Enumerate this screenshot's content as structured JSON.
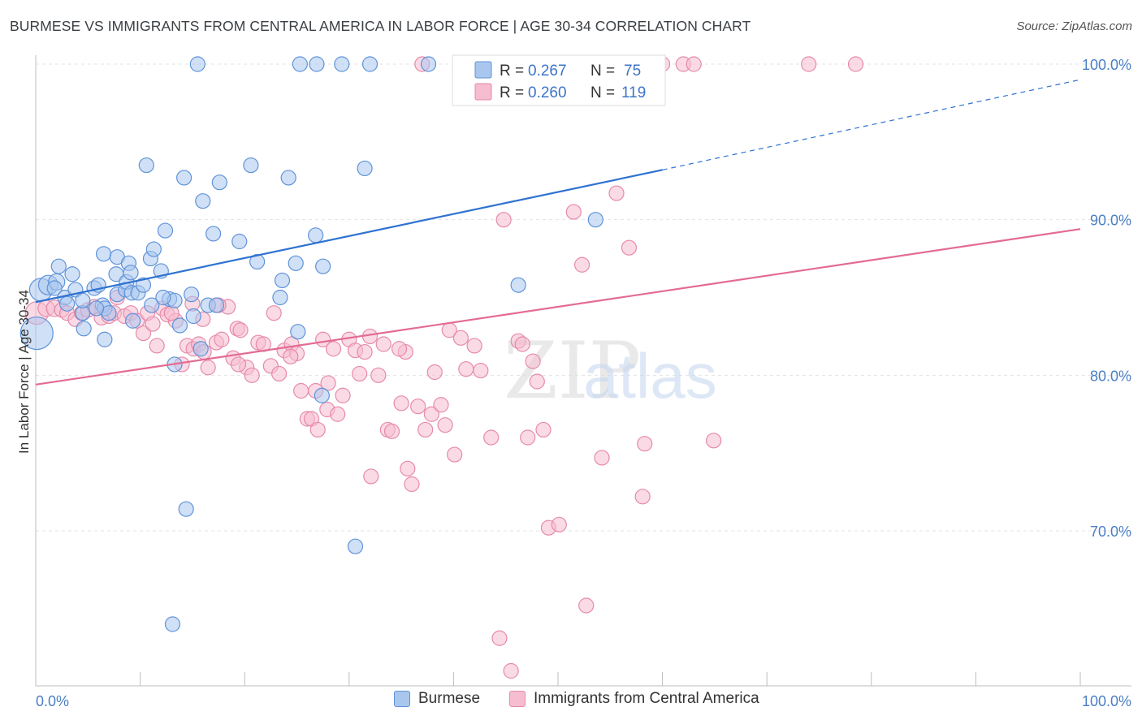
{
  "title": "BURMESE VS IMMIGRANTS FROM CENTRAL AMERICA IN LABOR FORCE | AGE 30-34 CORRELATION CHART",
  "source": "Source: ZipAtlas.com",
  "watermark": {
    "zip": "ZIP",
    "atlas": "atlas"
  },
  "colors": {
    "burmese_fill": "#a9c7ee",
    "burmese_stroke": "#5f93d8",
    "burmese_line": "#2f72d1",
    "central_fill": "#f6bccf",
    "central_stroke": "#e68aa9",
    "central_line": "#e46b93",
    "axis_text": "#4a7fc4",
    "grid": "#e3e3e3"
  },
  "legend": {
    "rows": [
      {
        "r_label": "R =",
        "r_value": "0.267",
        "n_label": "N =",
        "n_value": "75"
      },
      {
        "r_label": "R =",
        "r_value": "0.260",
        "n_label": "N =",
        "n_value": "119"
      }
    ]
  },
  "bottom_legend": [
    "Burmese",
    "Immigrants from Central America"
  ],
  "chart_data": {
    "type": "scatter",
    "xlabel": "",
    "ylabel": "In Labor Force | Age 30-34",
    "xlim": [
      0,
      100
    ],
    "ylim": [
      60.5,
      101.5
    ],
    "x_tick_labels": [
      "0.0%",
      "100.0%"
    ],
    "y_ticks": [
      70,
      80,
      90,
      100
    ],
    "y_tick_labels": [
      "70.0%",
      "80.0%",
      "90.0%",
      "100.0%"
    ],
    "grid": true,
    "series": [
      {
        "name": "Burmese",
        "trend": {
          "x": [
            0,
            60
          ],
          "y": [
            84.7,
            93.2
          ],
          "dashed_extension_to": [
            100,
            99.0
          ]
        },
        "points": [
          [
            0.1,
            82.7,
            20
          ],
          [
            0.5,
            85.5,
            14
          ],
          [
            1.2,
            85.8,
            12
          ],
          [
            2.0,
            86.0,
            10
          ],
          [
            2.2,
            87.0,
            9
          ],
          [
            1.8,
            85.6,
            9
          ],
          [
            2.8,
            85.0,
            9
          ],
          [
            3.5,
            86.5,
            9
          ],
          [
            3.8,
            85.5,
            9
          ],
          [
            4.5,
            84.0,
            9
          ],
          [
            4.6,
            83.0,
            9
          ],
          [
            5.6,
            85.6,
            9
          ],
          [
            6.0,
            85.8,
            9
          ],
          [
            6.4,
            84.5,
            9
          ],
          [
            6.6,
            84.3,
            9
          ],
          [
            7.0,
            84.0,
            9
          ],
          [
            7.8,
            85.2,
            9
          ],
          [
            6.6,
            82.3,
            9
          ],
          [
            6.5,
            87.8,
            9
          ],
          [
            7.7,
            86.5,
            9
          ],
          [
            7.8,
            87.6,
            9
          ],
          [
            8.6,
            85.5,
            9
          ],
          [
            8.7,
            86.0,
            9
          ],
          [
            8.9,
            87.2,
            9
          ],
          [
            9.1,
            86.6,
            9
          ],
          [
            9.2,
            85.3,
            9
          ],
          [
            9.3,
            83.5,
            9
          ],
          [
            9.8,
            85.3,
            9
          ],
          [
            10.3,
            85.8,
            9
          ],
          [
            10.6,
            93.5,
            9
          ],
          [
            11.1,
            84.5,
            9
          ],
          [
            11.0,
            87.5,
            9
          ],
          [
            11.3,
            88.1,
            9
          ],
          [
            12.0,
            86.7,
            9
          ],
          [
            12.4,
            89.3,
            9
          ],
          [
            12.8,
            84.9,
            9
          ],
          [
            13.3,
            84.8,
            9
          ],
          [
            13.3,
            80.7,
            9
          ],
          [
            13.8,
            83.2,
            9
          ],
          [
            14.2,
            92.7,
            9
          ],
          [
            14.4,
            71.4,
            9
          ],
          [
            14.9,
            85.2,
            9
          ],
          [
            15.1,
            83.8,
            9
          ],
          [
            15.8,
            81.7,
            9
          ],
          [
            16.0,
            91.2,
            9
          ],
          [
            16.5,
            84.5,
            9
          ],
          [
            17.0,
            89.1,
            9
          ],
          [
            17.3,
            84.5,
            9
          ],
          [
            17.6,
            92.4,
            9
          ],
          [
            19.5,
            88.6,
            9
          ],
          [
            20.6,
            93.5,
            9
          ],
          [
            21.2,
            87.3,
            9
          ],
          [
            23.4,
            85.0,
            9
          ],
          [
            23.6,
            86.1,
            9
          ],
          [
            24.2,
            92.7,
            9
          ],
          [
            24.9,
            87.2,
            9
          ],
          [
            25.1,
            82.8,
            9
          ],
          [
            26.8,
            89.0,
            9
          ],
          [
            27.5,
            87.0,
            9
          ],
          [
            27.4,
            78.7,
            9
          ],
          [
            29.3,
            100.0,
            9
          ],
          [
            30.6,
            69.0,
            9
          ],
          [
            31.5,
            93.3,
            9
          ],
          [
            15.5,
            100.0,
            9
          ],
          [
            25.3,
            100.0,
            9
          ],
          [
            26.9,
            100.0,
            9
          ],
          [
            32.0,
            100.0,
            9
          ],
          [
            37.6,
            100.0,
            9
          ],
          [
            46.2,
            85.8,
            9
          ],
          [
            53.6,
            90.0,
            9
          ],
          [
            13.1,
            64.0,
            9
          ],
          [
            4.5,
            84.8,
            9
          ],
          [
            5.8,
            84.3,
            9
          ],
          [
            12.2,
            85.0,
            9
          ],
          [
            3.0,
            84.6,
            9
          ]
        ]
      },
      {
        "name": "Immigrants from Central America",
        "trend": {
          "x": [
            0,
            100
          ],
          "y": [
            79.4,
            89.4
          ]
        },
        "points": [
          [
            0.1,
            84.0,
            14
          ],
          [
            1.0,
            84.3,
            10
          ],
          [
            1.8,
            84.3,
            10
          ],
          [
            2.5,
            84.2,
            9
          ],
          [
            3.0,
            84.0,
            9
          ],
          [
            3.8,
            83.6,
            9
          ],
          [
            4.4,
            84.0,
            9
          ],
          [
            5.0,
            84.2,
            9
          ],
          [
            5.6,
            84.4,
            9
          ],
          [
            6.3,
            83.7,
            9
          ],
          [
            7.0,
            83.8,
            9
          ],
          [
            7.5,
            84.0,
            9
          ],
          [
            7.8,
            85.0,
            9
          ],
          [
            8.5,
            83.8,
            9
          ],
          [
            9.1,
            84.0,
            9
          ],
          [
            9.7,
            83.5,
            9
          ],
          [
            10.3,
            82.7,
            9
          ],
          [
            10.7,
            84.0,
            9
          ],
          [
            11.2,
            83.3,
            9
          ],
          [
            11.6,
            81.9,
            9
          ],
          [
            12.1,
            84.3,
            9
          ],
          [
            12.6,
            83.9,
            9
          ],
          [
            13.4,
            83.5,
            9
          ],
          [
            14.0,
            80.7,
            9
          ],
          [
            14.5,
            81.9,
            9
          ],
          [
            15.0,
            84.6,
            9
          ],
          [
            15.1,
            81.7,
            9
          ],
          [
            15.6,
            82.0,
            9
          ],
          [
            16.1,
            81.5,
            9
          ],
          [
            16.5,
            80.5,
            9
          ],
          [
            17.3,
            82.1,
            9
          ],
          [
            17.8,
            82.3,
            9
          ],
          [
            18.4,
            84.4,
            9
          ],
          [
            18.9,
            81.1,
            9
          ],
          [
            19.3,
            83.0,
            9
          ],
          [
            19.6,
            82.9,
            9
          ],
          [
            20.2,
            80.5,
            9
          ],
          [
            20.7,
            80.0,
            9
          ],
          [
            21.3,
            82.1,
            9
          ],
          [
            21.8,
            82.0,
            9
          ],
          [
            22.5,
            80.6,
            9
          ],
          [
            22.8,
            84.0,
            9
          ],
          [
            23.3,
            80.1,
            9
          ],
          [
            23.8,
            81.6,
            9
          ],
          [
            24.5,
            82.0,
            9
          ],
          [
            25.0,
            81.4,
            9
          ],
          [
            25.4,
            79.0,
            9
          ],
          [
            26.0,
            77.2,
            9
          ],
          [
            26.4,
            77.2,
            9
          ],
          [
            26.8,
            79.0,
            9
          ],
          [
            27.5,
            82.3,
            9
          ],
          [
            27.9,
            77.8,
            9
          ],
          [
            28.5,
            81.7,
            9
          ],
          [
            28.9,
            77.5,
            9
          ],
          [
            29.4,
            78.7,
            9
          ],
          [
            30.0,
            82.3,
            9
          ],
          [
            30.6,
            81.6,
            9
          ],
          [
            31.0,
            80.1,
            9
          ],
          [
            31.5,
            81.5,
            9
          ],
          [
            32.1,
            73.5,
            9
          ],
          [
            32.8,
            80.0,
            9
          ],
          [
            33.3,
            82.0,
            9
          ],
          [
            33.7,
            76.5,
            9
          ],
          [
            34.1,
            76.4,
            9
          ],
          [
            35.0,
            78.2,
            9
          ],
          [
            35.4,
            81.5,
            9
          ],
          [
            35.6,
            74.0,
            9
          ],
          [
            36.0,
            73.0,
            9
          ],
          [
            36.6,
            78.0,
            9
          ],
          [
            37.3,
            76.5,
            9
          ],
          [
            37.9,
            77.5,
            9
          ],
          [
            38.2,
            80.2,
            9
          ],
          [
            38.8,
            78.1,
            9
          ],
          [
            39.2,
            76.8,
            9
          ],
          [
            39.6,
            82.9,
            9
          ],
          [
            40.1,
            74.9,
            9
          ],
          [
            40.7,
            82.4,
            9
          ],
          [
            41.2,
            80.4,
            9
          ],
          [
            42.0,
            81.9,
            9
          ],
          [
            42.6,
            80.3,
            9
          ],
          [
            43.6,
            76.0,
            9
          ],
          [
            44.8,
            90.0,
            9
          ],
          [
            45.5,
            61.0,
            9
          ],
          [
            44.4,
            63.1,
            9
          ],
          [
            46.2,
            82.2,
            9
          ],
          [
            47.1,
            76.0,
            9
          ],
          [
            47.6,
            80.9,
            9
          ],
          [
            48.0,
            79.6,
            9
          ],
          [
            48.6,
            76.5,
            9
          ],
          [
            49.1,
            70.2,
            9
          ],
          [
            50.1,
            70.4,
            9
          ],
          [
            51.5,
            90.5,
            9
          ],
          [
            52.3,
            87.1,
            9
          ],
          [
            52.7,
            65.2,
            9
          ],
          [
            54.2,
            74.7,
            9
          ],
          [
            55.6,
            91.7,
            9
          ],
          [
            56.8,
            88.2,
            9
          ],
          [
            58.1,
            72.2,
            9
          ],
          [
            58.3,
            75.6,
            9
          ],
          [
            64.9,
            75.8,
            9
          ],
          [
            46.6,
            82.0,
            9
          ],
          [
            32.0,
            82.5,
            9
          ],
          [
            27.0,
            76.5,
            9
          ],
          [
            24.4,
            81.2,
            9
          ],
          [
            19.4,
            80.7,
            9
          ],
          [
            13.0,
            84.0,
            9
          ],
          [
            16.0,
            83.6,
            9
          ],
          [
            17.5,
            84.5,
            9
          ],
          [
            34.8,
            81.7,
            9
          ],
          [
            28.0,
            79.5,
            9
          ],
          [
            37.0,
            100.0,
            9
          ],
          [
            45.0,
            100.0,
            9
          ],
          [
            50.0,
            100.0,
            9
          ],
          [
            54.0,
            100.0,
            9
          ],
          [
            60.0,
            100.0,
            9
          ],
          [
            62.0,
            100.0,
            9
          ],
          [
            63.0,
            100.0,
            9
          ],
          [
            74.0,
            100.0,
            9
          ],
          [
            78.5,
            100.0,
            9
          ]
        ]
      }
    ]
  }
}
